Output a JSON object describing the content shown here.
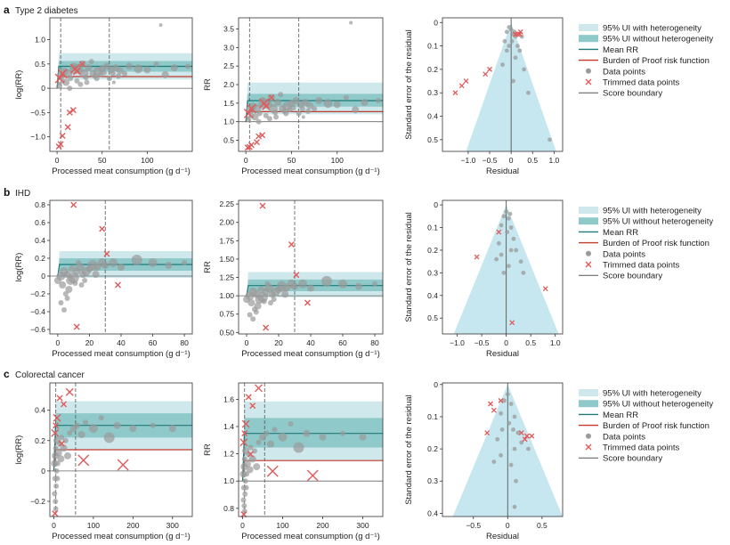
{
  "colors": {
    "ui_het": "#cfe8ec",
    "ui_nohet": "#8fc9c9",
    "mean": "#1f7a7a",
    "bprf": "#c0392b",
    "point": "#9a9a9a",
    "trimmed": "#e05a5a",
    "funnel": "#c6e7ef",
    "line": "#555555"
  },
  "legend": {
    "ui_het": "95% UI with heterogeneity",
    "ui_nohet": "95% UI without heterogeneity",
    "mean": "Mean RR",
    "bprf": "Burden of Proof risk function",
    "points": "Data points",
    "trimmed": "Trimmed data points",
    "boundary": "Score boundary"
  },
  "chart_data": [
    {
      "letter": "a",
      "title": "Type 2 diabetes",
      "type": "scatter",
      "xlabel": "Processed meat consumption (g d⁻¹)",
      "xlim": [
        -8,
        150
      ],
      "xticks": [
        0,
        50,
        100
      ],
      "vlines": [
        4,
        58
      ],
      "log": {
        "ylabel": "log(RR)",
        "ylim": [
          -1.3,
          1.45
        ],
        "yticks": [
          {
            "v": -1.0,
            "t": "−1.0"
          },
          {
            "v": -0.5,
            "t": "−0.5"
          },
          {
            "v": 0,
            "t": "0"
          },
          {
            "v": 0.5,
            "t": "0.5"
          },
          {
            "v": 1.0,
            "t": "1.0"
          }
        ]
      },
      "rr": {
        "ylabel": "RR",
        "ylim": [
          0.2,
          3.8
        ],
        "yticks": [
          0.5,
          1.0,
          1.5,
          2.0,
          2.5,
          3.0,
          3.5
        ]
      },
      "curve": {
        "mean": [
          0.45,
          0.38,
          0.06
        ],
        "ui_nohet": [
          0.56,
          0.3,
          0.09
        ],
        "ui_het": [
          0.72,
          0.22,
          0.09
        ],
        "bprf": [
          0.24,
          0.2,
          0.1
        ]
      },
      "points": [
        [
          5,
          0.28,
          5
        ],
        [
          8,
          0.35,
          4
        ],
        [
          10,
          0.12,
          4
        ],
        [
          12,
          0.3,
          5
        ],
        [
          15,
          0.2,
          3
        ],
        [
          18,
          0.45,
          4
        ],
        [
          20,
          0.4,
          6
        ],
        [
          22,
          0.15,
          3
        ],
        [
          25,
          0.38,
          4
        ],
        [
          28,
          0.5,
          4
        ],
        [
          30,
          0.3,
          5
        ],
        [
          32,
          0.22,
          3
        ],
        [
          35,
          0.42,
          4
        ],
        [
          38,
          0.55,
          3
        ],
        [
          40,
          0.3,
          4
        ],
        [
          42,
          0.25,
          3
        ],
        [
          45,
          0.35,
          5
        ],
        [
          48,
          0.28,
          3
        ],
        [
          50,
          0.4,
          4
        ],
        [
          52,
          0.32,
          3
        ],
        [
          55,
          0.45,
          4
        ],
        [
          58,
          0.2,
          3
        ],
        [
          60,
          0.38,
          4
        ],
        [
          62,
          0.3,
          3
        ],
        [
          65,
          0.42,
          4
        ],
        [
          68,
          0.25,
          3
        ],
        [
          70,
          0.36,
          4
        ],
        [
          75,
          0.3,
          3
        ],
        [
          80,
          0.45,
          4
        ],
        [
          90,
          0.4,
          5
        ],
        [
          100,
          0.38,
          4
        ],
        [
          110,
          0.5,
          3
        ],
        [
          120,
          0.28,
          4
        ],
        [
          130,
          0.42,
          4
        ],
        [
          145,
          0.45,
          3
        ],
        [
          115,
          1.3,
          2
        ],
        [
          3,
          0.05,
          3
        ],
        [
          6,
          0.15,
          3
        ],
        [
          14,
          0.0,
          3
        ],
        [
          2,
          0.1,
          2
        ],
        [
          26,
          0.08,
          3
        ],
        [
          33,
          0.12,
          3
        ],
        [
          44,
          0.2,
          3
        ],
        [
          63,
          0.12,
          2
        ]
      ],
      "trimmed": [
        [
          3,
          0.2,
          5
        ],
        [
          6,
          0.3,
          5
        ],
        [
          20,
          0.4,
          5
        ],
        [
          22,
          0.35,
          4
        ],
        [
          4,
          -1.15,
          3
        ],
        [
          6,
          -0.98,
          3
        ],
        [
          2,
          -1.2,
          3
        ],
        [
          14,
          -0.5,
          3
        ],
        [
          18,
          -0.45,
          3
        ],
        [
          12,
          -0.8,
          3
        ],
        [
          28,
          0.5,
          3
        ]
      ],
      "funnel": {
        "ylim": [
          0.55,
          -0.02
        ],
        "xlim": [
          -1.6,
          1.2
        ],
        "yticks": [
          0,
          0.1,
          0.2,
          0.3,
          0.4,
          0.5
        ],
        "xticks": [
          {
            "v": -1.0,
            "t": "−1.0"
          },
          {
            "v": -0.5,
            "t": "−0.5"
          },
          {
            "v": 0,
            "t": "0"
          },
          {
            "v": 0.5,
            "t": "0.5"
          },
          {
            "v": 1.0,
            "t": "1.0"
          }
        ],
        "half_width_at_max": 1.05,
        "points": [
          [
            0,
            0.03
          ],
          [
            0.05,
            0.05
          ],
          [
            -0.05,
            0.02
          ],
          [
            0.1,
            0.06
          ],
          [
            -0.1,
            0.04
          ],
          [
            0.02,
            0.08
          ],
          [
            0.15,
            0.1
          ],
          [
            -0.15,
            0.08
          ],
          [
            0.1,
            0.15
          ],
          [
            0.3,
            0.2
          ],
          [
            -0.1,
            0.12
          ],
          [
            0.2,
            0.12
          ],
          [
            0.05,
            0.25
          ],
          [
            -0.2,
            0.18
          ],
          [
            0.4,
            0.3
          ],
          [
            0.9,
            0.5
          ],
          [
            0.08,
            0.04
          ],
          [
            -0.05,
            0.1
          ],
          [
            0.25,
            0.06
          ]
        ],
        "trimmed": [
          [
            0.2,
            0.05
          ],
          [
            0.15,
            0.05
          ],
          [
            -0.6,
            0.22
          ],
          [
            -1.15,
            0.27
          ],
          [
            -1.3,
            0.3
          ],
          [
            -1.05,
            0.25
          ],
          [
            -0.5,
            0.2
          ],
          [
            0.1,
            0.05
          ],
          [
            0.22,
            0.04
          ]
        ]
      }
    },
    {
      "letter": "b",
      "title": "IHD",
      "type": "scatter",
      "xlabel": "Processed meat consumption (g d⁻¹)",
      "xlim": [
        -5,
        85
      ],
      "xticks": [
        0,
        20,
        40,
        60,
        80
      ],
      "vlines": [
        30
      ],
      "log": {
        "ylabel": "log(RR)",
        "ylim": [
          -0.65,
          0.85
        ],
        "yticks": [
          {
            "v": -0.6,
            "t": "−0.6"
          },
          {
            "v": -0.4,
            "t": "−0.4"
          },
          {
            "v": -0.2,
            "t": "−0.2"
          },
          {
            "v": 0,
            "t": "0"
          },
          {
            "v": 0.2,
            "t": "0.2"
          },
          {
            "v": 0.4,
            "t": "0.4"
          },
          {
            "v": 0.6,
            "t": "0.6"
          },
          {
            "v": 0.8,
            "t": "0.8"
          }
        ]
      },
      "rr": {
        "ylabel": "RR",
        "ylim": [
          0.48,
          2.3
        ],
        "yticks": [
          0.5,
          0.75,
          1.0,
          1.25,
          1.5,
          1.75,
          2.0,
          2.25
        ],
        "tickfmt": 2
      },
      "curve": {
        "mean": [
          0.13,
          0.06,
          0.06
        ],
        "ui_nohet": [
          0.2,
          0.05,
          0.06
        ],
        "ui_het": [
          0.28,
          0.03,
          0.06
        ],
        "bprf": [
          0.0,
          0.0,
          0.1
        ]
      },
      "points": [
        [
          0,
          -0.05,
          4
        ],
        [
          2,
          0.0,
          5
        ],
        [
          3,
          -0.1,
          4
        ],
        [
          4,
          0.05,
          5
        ],
        [
          5,
          -0.2,
          3
        ],
        [
          6,
          0.02,
          4
        ],
        [
          8,
          -0.05,
          5
        ],
        [
          9,
          0.08,
          4
        ],
        [
          10,
          -0.02,
          6
        ],
        [
          12,
          0.05,
          4
        ],
        [
          14,
          0.1,
          5
        ],
        [
          15,
          -0.1,
          3
        ],
        [
          16,
          0.02,
          4
        ],
        [
          18,
          0.05,
          5
        ],
        [
          20,
          0.08,
          4
        ],
        [
          22,
          0.12,
          6
        ],
        [
          25,
          0.1,
          4
        ],
        [
          28,
          0.15,
          5
        ],
        [
          30,
          0.12,
          4
        ],
        [
          35,
          0.15,
          5
        ],
        [
          40,
          0.1,
          4
        ],
        [
          50,
          0.18,
          6
        ],
        [
          60,
          0.15,
          5
        ],
        [
          70,
          0.12,
          4
        ],
        [
          80,
          0.15,
          3
        ],
        [
          2,
          -0.3,
          3
        ],
        [
          4,
          -0.38,
          3
        ],
        [
          6,
          -0.25,
          3
        ],
        [
          7,
          -0.15,
          4
        ],
        [
          11,
          -0.08,
          3
        ],
        [
          13,
          0.15,
          3
        ],
        [
          17,
          -0.05,
          3
        ],
        [
          24,
          0.02,
          4
        ]
      ],
      "trimmed": [
        [
          10,
          0.8,
          3
        ],
        [
          28,
          0.53,
          3
        ],
        [
          31,
          0.25,
          3
        ],
        [
          38,
          -0.1,
          3
        ],
        [
          12,
          -0.57,
          3
        ]
      ],
      "funnel": {
        "ylim": [
          0.57,
          -0.02
        ],
        "xlim": [
          -1.3,
          1.15
        ],
        "yticks": [
          0,
          0.1,
          0.2,
          0.3,
          0.4,
          0.5
        ],
        "xticks": [
          {
            "v": -1.0,
            "t": "−1.0"
          },
          {
            "v": -0.5,
            "t": "−0.5"
          },
          {
            "v": 0,
            "t": "0"
          },
          {
            "v": 0.5,
            "t": "0.5"
          },
          {
            "v": 1.0,
            "t": "1.0"
          }
        ],
        "half_width_at_max": 1.07,
        "points": [
          [
            0,
            0.03
          ],
          [
            0.05,
            0.06
          ],
          [
            -0.05,
            0.05
          ],
          [
            0.1,
            0.1
          ],
          [
            -0.1,
            0.09
          ],
          [
            0.02,
            0.12
          ],
          [
            0.15,
            0.15
          ],
          [
            -0.15,
            0.17
          ],
          [
            0.1,
            0.2
          ],
          [
            0.3,
            0.25
          ],
          [
            -0.1,
            0.22
          ],
          [
            0.2,
            0.2
          ],
          [
            0.05,
            0.27
          ],
          [
            -0.2,
            0.24
          ],
          [
            0.35,
            0.3
          ],
          [
            -0.05,
            0.3
          ],
          [
            0.08,
            0.04
          ]
        ],
        "trimmed": [
          [
            -0.15,
            0.12
          ],
          [
            -0.6,
            0.23
          ],
          [
            0.8,
            0.37
          ],
          [
            0.12,
            0.52
          ]
        ]
      }
    },
    {
      "letter": "c",
      "title": "Colorectal cancer",
      "type": "scatter",
      "xlabel": "Processed meat consumption (g d⁻¹)",
      "xlim": [
        -10,
        350
      ],
      "xticks": [
        0,
        100,
        200,
        300
      ],
      "vlines": [
        5,
        55
      ],
      "log": {
        "ylabel": "log(RR)",
        "ylim": [
          -0.3,
          0.58
        ],
        "yticks": [
          {
            "v": -0.2,
            "t": "−0.2"
          },
          {
            "v": 0,
            "t": "0"
          },
          {
            "v": 0.2,
            "t": "0.2"
          },
          {
            "v": 0.4,
            "t": "0.4"
          }
        ]
      },
      "rr": {
        "ylabel": "RR",
        "ylim": [
          0.74,
          1.72
        ],
        "yticks": [
          0.8,
          1.0,
          1.2,
          1.4,
          1.6
        ]
      },
      "curve": {
        "mean": [
          0.3,
          0.2,
          0.015
        ],
        "ui_nohet": [
          0.38,
          0.18,
          0.015
        ],
        "ui_het": [
          0.46,
          0.12,
          0.015
        ],
        "bprf": [
          0.14,
          0.1,
          0.02
        ]
      },
      "points": [
        [
          2,
          0.05,
          4
        ],
        [
          3,
          -0.05,
          3
        ],
        [
          4,
          0.1,
          4
        ],
        [
          5,
          0.15,
          3
        ],
        [
          6,
          -0.1,
          3
        ],
        [
          8,
          0.2,
          4
        ],
        [
          10,
          0.05,
          3
        ],
        [
          12,
          0.12,
          4
        ],
        [
          15,
          0.18,
          3
        ],
        [
          18,
          0.08,
          4
        ],
        [
          20,
          0.22,
          3
        ],
        [
          25,
          0.15,
          4
        ],
        [
          30,
          0.2,
          3
        ],
        [
          35,
          0.1,
          4
        ],
        [
          40,
          0.25,
          3
        ],
        [
          50,
          0.28,
          4
        ],
        [
          60,
          0.3,
          3
        ],
        [
          70,
          0.24,
          4
        ],
        [
          80,
          0.32,
          3
        ],
        [
          100,
          0.28,
          5
        ],
        [
          120,
          0.35,
          3
        ],
        [
          140,
          0.22,
          6
        ],
        [
          160,
          0.3,
          4
        ],
        [
          200,
          0.28,
          4
        ],
        [
          250,
          0.3,
          3
        ],
        [
          300,
          0.28,
          4
        ],
        [
          2,
          -0.15,
          3
        ],
        [
          4,
          -0.2,
          3
        ],
        [
          5,
          -0.25,
          3
        ],
        [
          7,
          0.0,
          3
        ],
        [
          9,
          -0.05,
          3
        ]
      ],
      "trimmed": [
        [
          3,
          0.25,
          4
        ],
        [
          8,
          0.35,
          4
        ],
        [
          15,
          0.48,
          3
        ],
        [
          25,
          0.44,
          3
        ],
        [
          40,
          0.52,
          4
        ],
        [
          5,
          0.3,
          3
        ],
        [
          20,
          0.18,
          3
        ],
        [
          75,
          0.07,
          6
        ],
        [
          175,
          0.04,
          6
        ],
        [
          3,
          -0.28,
          3
        ]
      ],
      "funnel": {
        "ylim": [
          0.41,
          -0.005
        ],
        "xlim": [
          -0.95,
          0.8
        ],
        "yticks": [
          0,
          0.1,
          0.2,
          0.3,
          0.4
        ],
        "xticks": [
          {
            "v": -0.5,
            "t": "−0.5"
          },
          {
            "v": 0,
            "t": "0"
          },
          {
            "v": 0.5,
            "t": "0.5"
          }
        ],
        "half_width_at_max": 0.8,
        "points": [
          [
            0,
            0.03
          ],
          [
            0.05,
            0.06
          ],
          [
            -0.05,
            0.05
          ],
          [
            0.1,
            0.1
          ],
          [
            -0.1,
            0.09
          ],
          [
            0.02,
            0.12
          ],
          [
            0.15,
            0.15
          ],
          [
            -0.15,
            0.17
          ],
          [
            0.1,
            0.2
          ],
          [
            0.3,
            0.2
          ],
          [
            -0.1,
            0.22
          ],
          [
            0.2,
            0.18
          ],
          [
            0.05,
            0.25
          ],
          [
            -0.2,
            0.24
          ],
          [
            0.08,
            0.14
          ],
          [
            -0.08,
            0.14
          ],
          [
            0.12,
            0.3
          ],
          [
            0.1,
            0.38
          ]
        ],
        "trimmed": [
          [
            -0.2,
            0.08
          ],
          [
            -0.25,
            0.06
          ],
          [
            -0.1,
            0.05
          ],
          [
            0.2,
            0.15
          ],
          [
            0.28,
            0.16
          ],
          [
            0.25,
            0.17
          ],
          [
            -0.3,
            0.15
          ],
          [
            0.35,
            0.16
          ]
        ]
      }
    }
  ]
}
